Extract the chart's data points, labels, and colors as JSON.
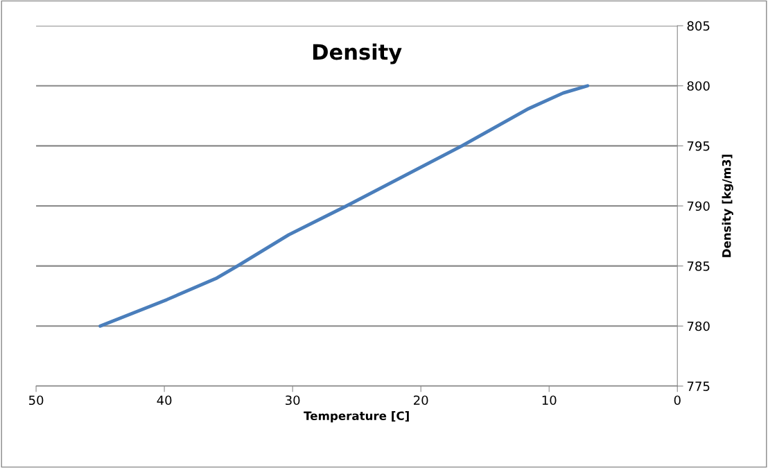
{
  "chart_data": {
    "type": "line",
    "title": "Density",
    "xlabel": "Temperature [C]",
    "ylabel": "Density [kg/m3]",
    "series": [
      {
        "color": "#4a7ebb",
        "x": [
          45,
          39.8,
          35.9,
          34.3,
          30.3,
          25.8,
          16.8,
          11.6,
          8.9,
          7.0
        ],
        "values": [
          780,
          782.2,
          784.0,
          785,
          787.6,
          790,
          795,
          798.1,
          799.4,
          800
        ]
      }
    ],
    "xlim": [
      50,
      0
    ],
    "xticks": [
      50,
      40,
      30,
      20,
      10,
      0
    ],
    "ylim": [
      775,
      805
    ],
    "yticks": [
      775,
      780,
      785,
      790,
      795,
      800,
      805
    ],
    "grid": "y",
    "legend": false,
    "marker": "none",
    "line_style": "solid"
  }
}
